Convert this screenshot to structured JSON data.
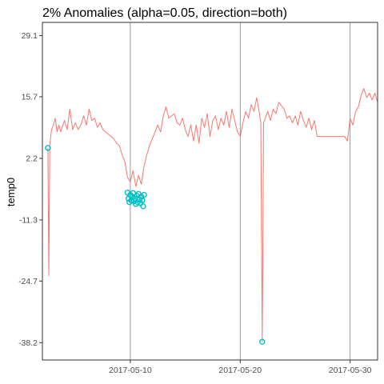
{
  "chart_data": {
    "type": "line",
    "title": "2% Anomalies (alpha=0.05, direction=both)",
    "xlabel": "",
    "ylabel": "temp0",
    "x_axis": {
      "kind": "date",
      "range": [
        "2017-05-02T00:00",
        "2017-06-01T12:00"
      ],
      "ticks": [
        "2017-05-10",
        "2017-05-20",
        "2017-05-30"
      ]
    },
    "y_axis": {
      "range": [
        -42.0,
        32.0
      ],
      "ticks": [
        29.1,
        15.7,
        2.2,
        -11.3,
        -24.7,
        -38.2
      ]
    },
    "grid": false,
    "legend": "none",
    "colors": {
      "line": "#F8766D",
      "anomaly": "#00BFC4",
      "vline": "#808080",
      "panel_border": "#333333",
      "tick_text": "#4d4d4d"
    },
    "vertical_lines": [
      "2017-05-10",
      "2017-05-20",
      "2017-05-30"
    ],
    "series": [
      {
        "role": "observed",
        "points": [
          [
            "2017-05-02T12:00",
            4.5
          ],
          [
            "2017-05-02T14:00",
            -23.5
          ],
          [
            "2017-05-02T16:00",
            5.0
          ],
          [
            "2017-05-02T20:00",
            8.5
          ],
          [
            "2017-05-03T00:00",
            9.5
          ],
          [
            "2017-05-03T04:00",
            11.0
          ],
          [
            "2017-05-03T08:00",
            8.0
          ],
          [
            "2017-05-03T12:00",
            9.5
          ],
          [
            "2017-05-03T16:00",
            8.0
          ],
          [
            "2017-05-04T00:00",
            10.5
          ],
          [
            "2017-05-04T06:00",
            8.5
          ],
          [
            "2017-05-04T12:00",
            13.0
          ],
          [
            "2017-05-04T18:00",
            8.5
          ],
          [
            "2017-05-05T00:00",
            10.0
          ],
          [
            "2017-05-05T06:00",
            8.5
          ],
          [
            "2017-05-05T12:00",
            9.5
          ],
          [
            "2017-05-05T18:00",
            11.5
          ],
          [
            "2017-05-06T00:00",
            9.5
          ],
          [
            "2017-05-06T06:00",
            13.0
          ],
          [
            "2017-05-06T12:00",
            10.5
          ],
          [
            "2017-05-06T18:00",
            11.0
          ],
          [
            "2017-05-07T00:00",
            9.0
          ],
          [
            "2017-05-07T06:00",
            10.0
          ],
          [
            "2017-05-07T12:00",
            8.5
          ],
          [
            "2017-05-08T00:00",
            7.5
          ],
          [
            "2017-05-08T12:00",
            6.5
          ],
          [
            "2017-05-08T18:00",
            5.5
          ],
          [
            "2017-05-09T00:00",
            5.0
          ],
          [
            "2017-05-09T06:00",
            3.0
          ],
          [
            "2017-05-09T12:00",
            1.5
          ],
          [
            "2017-05-09T18:00",
            -2.0
          ],
          [
            "2017-05-10T00:00",
            -3.0
          ],
          [
            "2017-05-10T06:00",
            -0.5
          ],
          [
            "2017-05-10T12:00",
            -4.0
          ],
          [
            "2017-05-10T18:00",
            -1.5
          ],
          [
            "2017-05-11T00:00",
            -3.5
          ],
          [
            "2017-05-11T06:00",
            0.5
          ],
          [
            "2017-05-11T12:00",
            3.0
          ],
          [
            "2017-05-11T18:00",
            5.0
          ],
          [
            "2017-05-12T00:00",
            6.5
          ],
          [
            "2017-05-12T12:00",
            9.5
          ],
          [
            "2017-05-12T18:00",
            8.0
          ],
          [
            "2017-05-13T00:00",
            11.5
          ],
          [
            "2017-05-13T06:00",
            13.5
          ],
          [
            "2017-05-13T12:00",
            11.0
          ],
          [
            "2017-05-14T00:00",
            12.0
          ],
          [
            "2017-05-14T06:00",
            10.0
          ],
          [
            "2017-05-14T12:00",
            9.5
          ],
          [
            "2017-05-14T18:00",
            11.0
          ],
          [
            "2017-05-15T00:00",
            8.5
          ],
          [
            "2017-05-15T06:00",
            7.0
          ],
          [
            "2017-05-15T12:00",
            9.5
          ],
          [
            "2017-05-15T18:00",
            6.0
          ],
          [
            "2017-05-16T00:00",
            9.5
          ],
          [
            "2017-05-16T06:00",
            5.5
          ],
          [
            "2017-05-16T12:00",
            11.0
          ],
          [
            "2017-05-16T18:00",
            9.0
          ],
          [
            "2017-05-17T00:00",
            12.0
          ],
          [
            "2017-05-17T06:00",
            7.0
          ],
          [
            "2017-05-17T12:00",
            10.5
          ],
          [
            "2017-05-17T18:00",
            11.5
          ],
          [
            "2017-05-18T00:00",
            8.5
          ],
          [
            "2017-05-18T06:00",
            11.0
          ],
          [
            "2017-05-18T12:00",
            9.5
          ],
          [
            "2017-05-18T18:00",
            12.5
          ],
          [
            "2017-05-19T00:00",
            9.0
          ],
          [
            "2017-05-19T06:00",
            13.0
          ],
          [
            "2017-05-19T12:00",
            10.5
          ],
          [
            "2017-05-19T18:00",
            8.0
          ],
          [
            "2017-05-20T00:00",
            7.0
          ],
          [
            "2017-05-20T06:00",
            10.0
          ],
          [
            "2017-05-20T12:00",
            12.5
          ],
          [
            "2017-05-20T18:00",
            11.0
          ],
          [
            "2017-05-21T00:00",
            14.0
          ],
          [
            "2017-05-21T06:00",
            12.5
          ],
          [
            "2017-05-21T12:00",
            15.5
          ],
          [
            "2017-05-21T18:00",
            12.0
          ],
          [
            "2017-05-21T21:00",
            10.0
          ],
          [
            "2017-05-22T00:00",
            -38.0
          ],
          [
            "2017-05-22T03:00",
            10.0
          ],
          [
            "2017-05-22T12:00",
            12.5
          ],
          [
            "2017-05-22T18:00",
            10.5
          ],
          [
            "2017-05-23T00:00",
            13.0
          ],
          [
            "2017-05-23T06:00",
            12.0
          ],
          [
            "2017-05-23T12:00",
            14.5
          ],
          [
            "2017-05-24T00:00",
            13.0
          ],
          [
            "2017-05-24T06:00",
            11.0
          ],
          [
            "2017-05-24T12:00",
            11.5
          ],
          [
            "2017-05-24T18:00",
            10.0
          ],
          [
            "2017-05-25T00:00",
            11.5
          ],
          [
            "2017-05-25T06:00",
            9.5
          ],
          [
            "2017-05-25T12:00",
            12.5
          ],
          [
            "2017-05-25T18:00",
            10.5
          ],
          [
            "2017-05-26T00:00",
            9.0
          ],
          [
            "2017-05-26T06:00",
            11.0
          ],
          [
            "2017-05-26T12:00",
            8.5
          ],
          [
            "2017-05-26T18:00",
            10.5
          ],
          [
            "2017-05-27T00:00",
            7.0
          ],
          [
            "2017-05-27T12:00",
            7.0
          ],
          [
            "2017-05-28T00:00",
            7.0
          ],
          [
            "2017-05-28T12:00",
            7.0
          ],
          [
            "2017-05-29T00:00",
            7.0
          ],
          [
            "2017-05-29T12:00",
            7.0
          ],
          [
            "2017-05-29T18:00",
            6.0
          ],
          [
            "2017-05-30T00:00",
            11.0
          ],
          [
            "2017-05-30T06:00",
            9.5
          ],
          [
            "2017-05-30T12:00",
            12.5
          ],
          [
            "2017-05-30T18:00",
            13.5
          ],
          [
            "2017-05-31T00:00",
            16.0
          ],
          [
            "2017-05-31T06:00",
            17.5
          ],
          [
            "2017-05-31T12:00",
            15.5
          ],
          [
            "2017-05-31T18:00",
            16.5
          ],
          [
            "2017-06-01T00:00",
            15.0
          ],
          [
            "2017-06-01T06:00",
            16.5
          ],
          [
            "2017-06-01T12:00",
            14.5
          ]
        ]
      },
      {
        "role": "anomalies",
        "points": [
          [
            "2017-05-02T12:00",
            4.5
          ],
          [
            "2017-05-22T00:00",
            -38.0
          ],
          [
            "2017-05-09T18:00",
            -5.3
          ],
          [
            "2017-05-09T20:00",
            -6.6
          ],
          [
            "2017-05-09T22:00",
            -7.4
          ],
          [
            "2017-05-10T00:00",
            -5.8
          ],
          [
            "2017-05-10T02:00",
            -7.0
          ],
          [
            "2017-05-10T04:00",
            -6.2
          ],
          [
            "2017-05-10T06:00",
            -5.4
          ],
          [
            "2017-05-10T08:00",
            -7.2
          ],
          [
            "2017-05-10T10:00",
            -6.6
          ],
          [
            "2017-05-10T12:00",
            -7.8
          ],
          [
            "2017-05-10T14:00",
            -6.0
          ],
          [
            "2017-05-10T16:00",
            -7.4
          ],
          [
            "2017-05-10T18:00",
            -5.6
          ],
          [
            "2017-05-10T20:00",
            -6.8
          ],
          [
            "2017-05-10T22:00",
            -7.6
          ],
          [
            "2017-05-11T00:00",
            -6.2
          ],
          [
            "2017-05-11T02:00",
            -7.0
          ],
          [
            "2017-05-11T04:00",
            -8.3
          ],
          [
            "2017-05-11T06:00",
            -5.8
          ]
        ]
      }
    ]
  }
}
